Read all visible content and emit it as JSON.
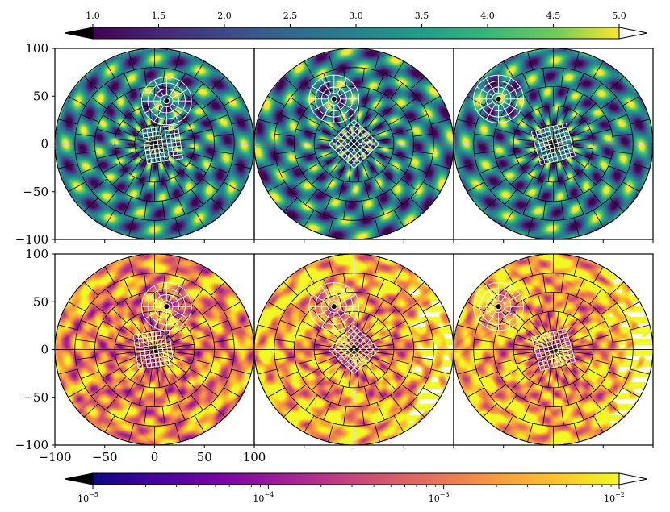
{
  "figure": {
    "type": "polar-grid-panels",
    "rows": 2,
    "cols": 3
  },
  "colorbar_top": {
    "colormap": "viridis",
    "scale": "linear",
    "range": [
      1.0,
      5.0
    ],
    "extend": "both",
    "ticks": [
      "1.0",
      "1.5",
      "2.0",
      "2.5",
      "3.0",
      "3.5",
      "4.0",
      "4.5",
      "5.0"
    ],
    "tick_values": [
      1.0,
      1.5,
      2.0,
      2.5,
      3.0,
      3.5,
      4.0,
      4.5,
      5.0
    ]
  },
  "colorbar_bottom": {
    "colormap": "plasma",
    "scale": "log",
    "range": [
      1e-05,
      0.01
    ],
    "extend": "both",
    "tick_values": [
      1e-05,
      0.0001,
      0.001,
      0.01
    ],
    "tick_labels": [
      {
        "base": "10",
        "exp": "−5"
      },
      {
        "base": "10",
        "exp": "−4"
      },
      {
        "base": "10",
        "exp": "−3"
      },
      {
        "base": "10",
        "exp": "−2"
      }
    ]
  },
  "y_axis_ticks": [
    "100",
    "50",
    "0",
    "−50",
    "−100"
  ],
  "y_axis_values": [
    100,
    50,
    0,
    -50,
    -100
  ],
  "x_axis_ticks": [
    "−100",
    "−50",
    "0",
    "50",
    "100"
  ],
  "x_axis_values": [
    -100,
    -50,
    0,
    50,
    100
  ],
  "axis_range": [
    -100,
    100
  ],
  "colors": {
    "disk_edge": "#000000",
    "grid_overlay": "#000000",
    "inset_grid": "#ffffff"
  },
  "chart_data": [
    {
      "type": "heatmap",
      "row": 1,
      "col": 1,
      "colormap": "viridis",
      "xlim": [
        -100,
        100
      ],
      "ylim": [
        -100,
        100
      ],
      "disk_radius": 100,
      "inset_circle": {
        "center": [
          12,
          45
        ],
        "radius": 25
      },
      "inset_square": {
        "center": [
          8,
          0
        ],
        "half_size": 18,
        "rotation_deg": 8
      }
    },
    {
      "type": "heatmap",
      "row": 1,
      "col": 2,
      "colormap": "viridis",
      "xlim": [
        -100,
        100
      ],
      "ylim": [
        -100,
        100
      ],
      "disk_radius": 100,
      "inset_circle": {
        "center": [
          -20,
          47
        ],
        "radius": 25
      },
      "inset_square": {
        "center": [
          0,
          0
        ],
        "half_size": 18,
        "rotation_deg": 45
      }
    },
    {
      "type": "heatmap",
      "row": 1,
      "col": 3,
      "colormap": "viridis",
      "xlim": [
        -100,
        100
      ],
      "ylim": [
        -100,
        100
      ],
      "disk_radius": 100,
      "inset_circle": {
        "center": [
          -55,
          47
        ],
        "radius": 25
      },
      "inset_square": {
        "center": [
          0,
          0
        ],
        "half_size": 18,
        "rotation_deg": 15
      }
    },
    {
      "type": "heatmap",
      "row": 2,
      "col": 1,
      "colormap": "plasma",
      "scale": "log",
      "xlim": [
        -100,
        100
      ],
      "ylim": [
        -100,
        100
      ],
      "disk_radius": 100,
      "inset_circle": {
        "center": [
          12,
          45
        ],
        "radius": 25
      },
      "inset_square": {
        "center": [
          -1,
          0
        ],
        "half_size": 18,
        "rotation_deg": 8
      }
    },
    {
      "type": "heatmap",
      "row": 2,
      "col": 2,
      "colormap": "plasma",
      "scale": "log",
      "xlim": [
        -100,
        100
      ],
      "ylim": [
        -100,
        100
      ],
      "disk_radius": 100,
      "inset_circle": {
        "center": [
          -20,
          45
        ],
        "radius": 25
      },
      "inset_square": {
        "center": [
          0,
          0
        ],
        "half_size": 18,
        "rotation_deg": 45
      }
    },
    {
      "type": "heatmap",
      "row": 2,
      "col": 3,
      "colormap": "plasma",
      "scale": "log",
      "xlim": [
        -100,
        100
      ],
      "ylim": [
        -100,
        100
      ],
      "disk_radius": 100,
      "inset_circle": {
        "center": [
          -55,
          45
        ],
        "radius": 25
      },
      "inset_square": {
        "center": [
          0,
          0
        ],
        "half_size": 18,
        "rotation_deg": 15
      }
    }
  ]
}
